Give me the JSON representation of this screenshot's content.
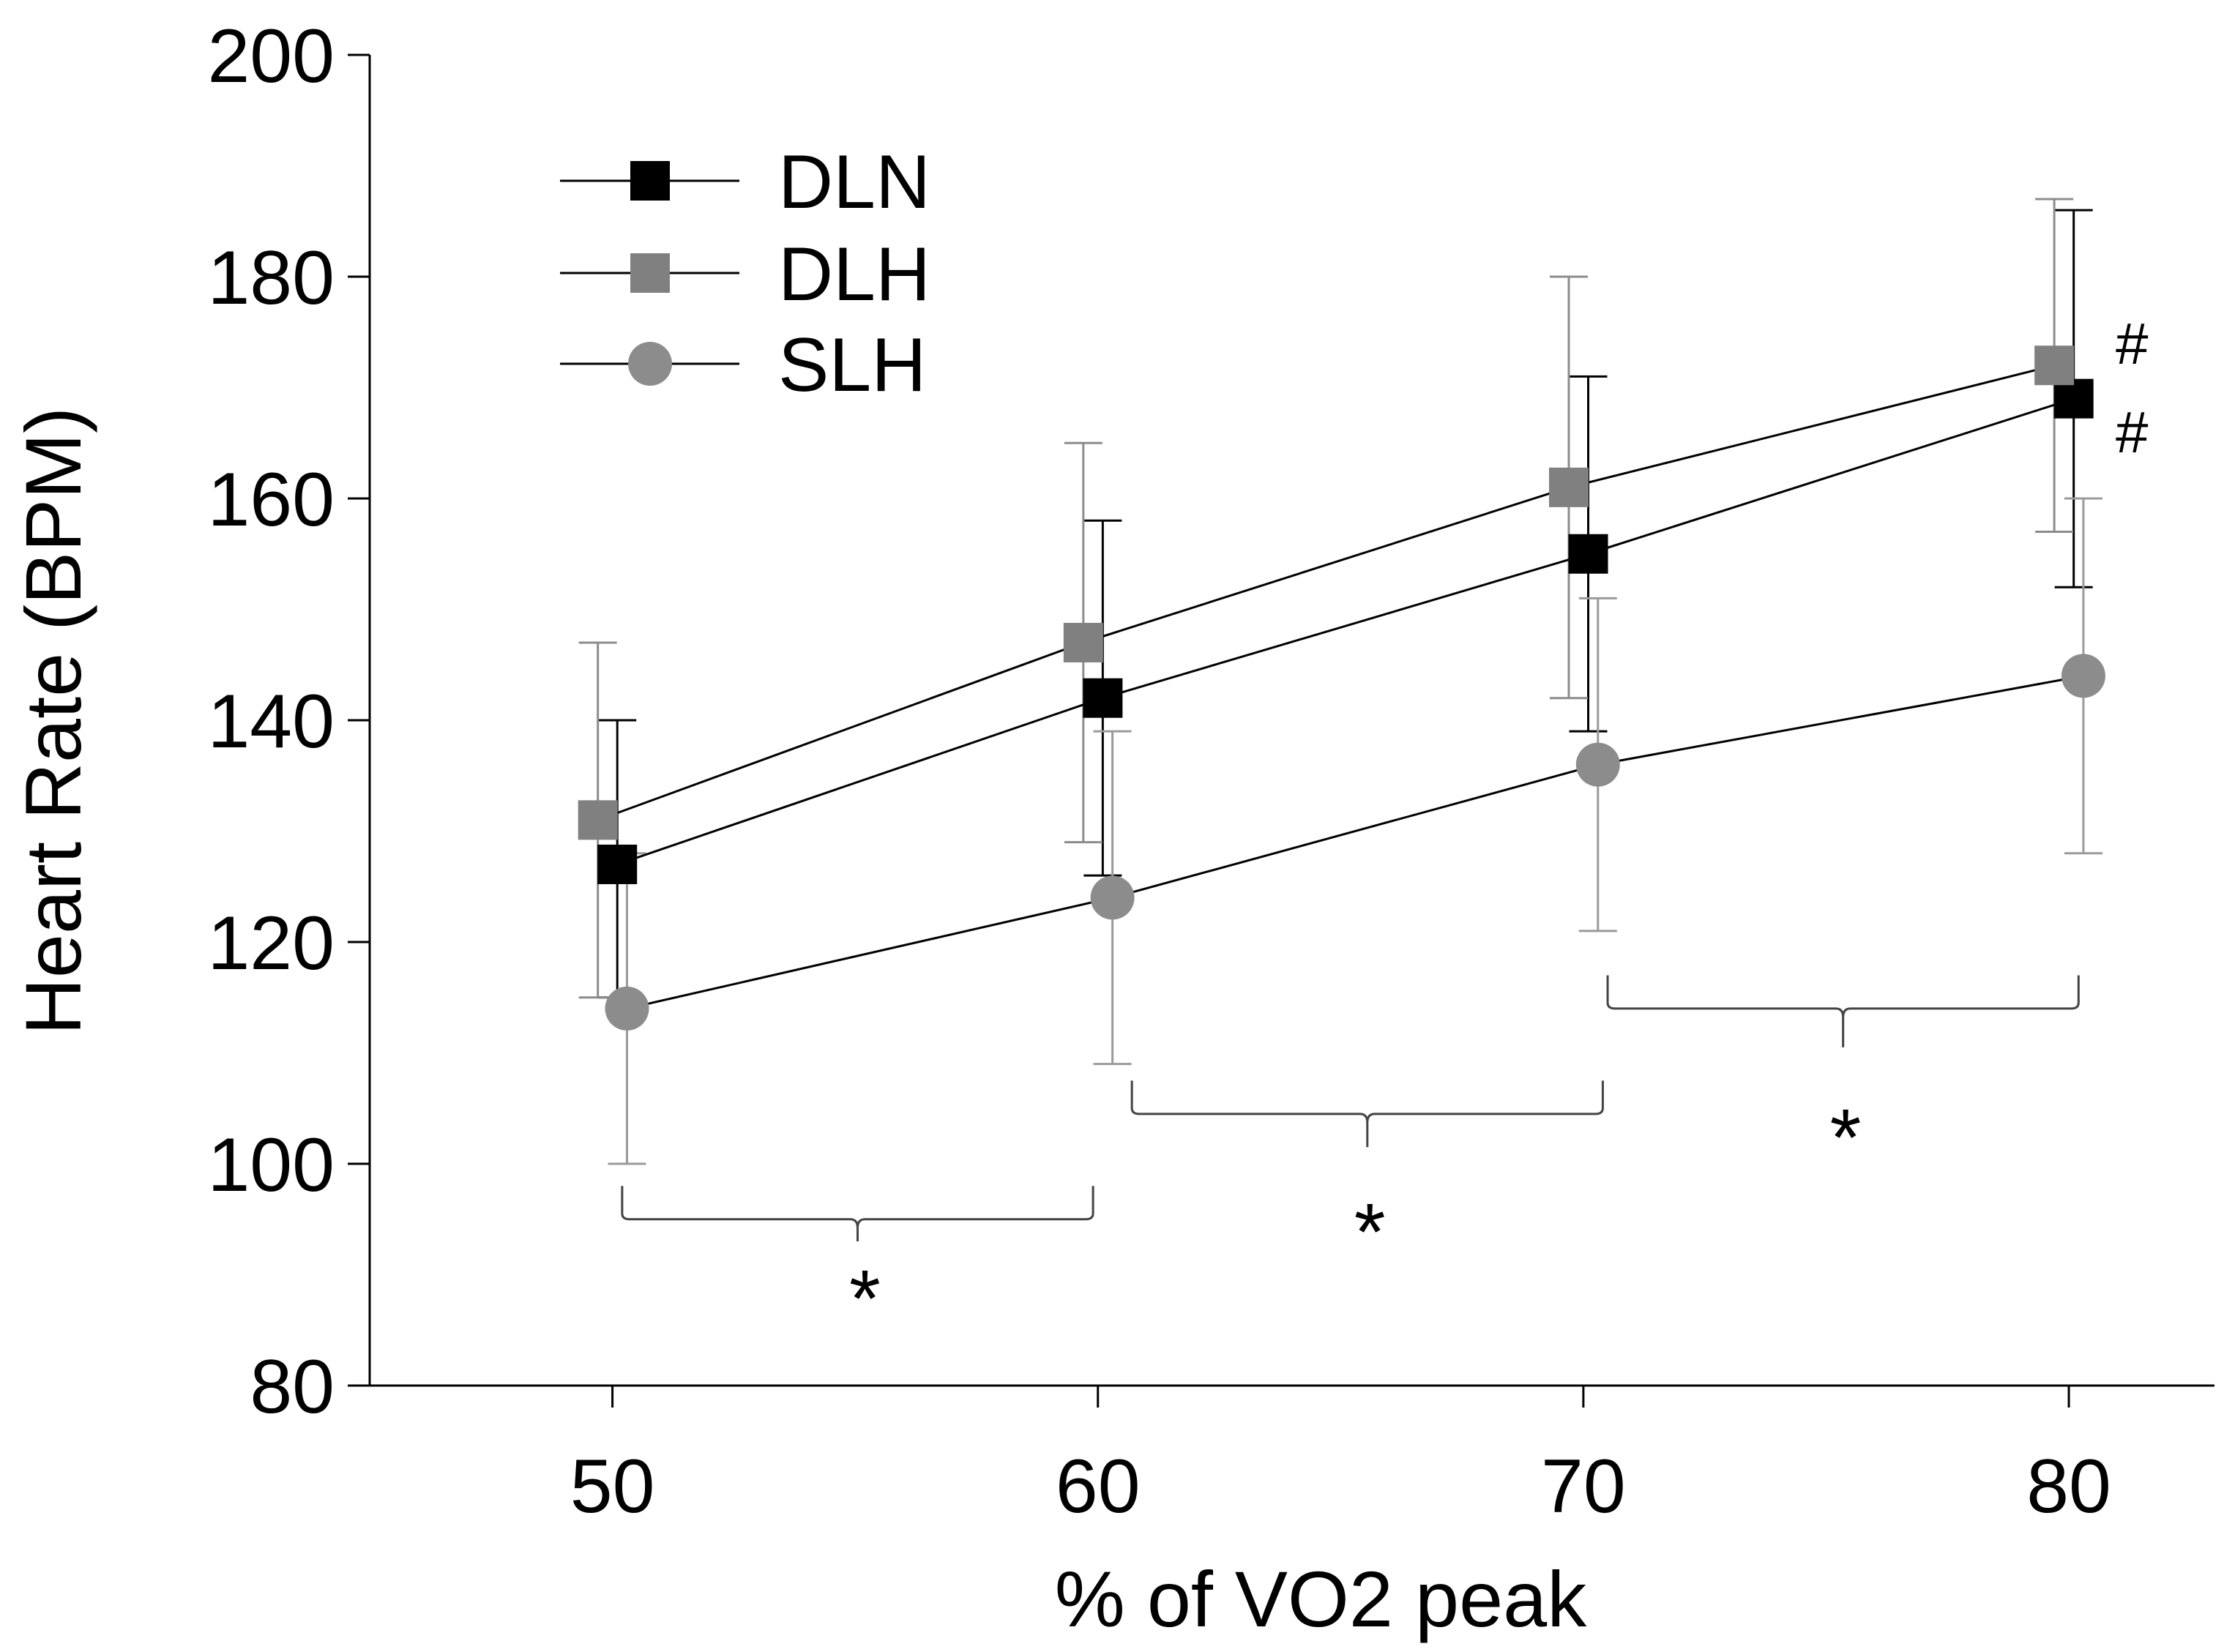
{
  "chart_data": {
    "type": "line",
    "x": [
      50,
      60,
      70,
      80
    ],
    "xlabel": "% of VO2 peak",
    "ylabel": "Heart Rate (BPM)",
    "xlim": [
      45,
      83
    ],
    "ylim": [
      80,
      200
    ],
    "xticks": [
      "50",
      "60",
      "70",
      "80"
    ],
    "yticks": [
      "80",
      "100",
      "120",
      "140",
      "160",
      "180",
      "200"
    ],
    "grid": false,
    "legend_position": "top-left",
    "series": [
      {
        "name": "DLN",
        "marker": "square",
        "color": "#000000",
        "errcolor": "#000000",
        "values": [
          127,
          142,
          155,
          169
        ],
        "err_low": [
          115,
          126,
          139,
          152
        ],
        "err_high": [
          140,
          158,
          171,
          186
        ],
        "x_offset": 0.1
      },
      {
        "name": "DLH",
        "marker": "square",
        "color": "#808080",
        "errcolor": "#8c8c8c",
        "values": [
          131,
          147,
          161,
          172
        ],
        "err_low": [
          115,
          129,
          142,
          157
        ],
        "err_high": [
          147,
          165,
          180,
          187
        ],
        "x_offset": -0.3
      },
      {
        "name": "SLH",
        "marker": "circle",
        "color": "#8c8c8c",
        "errcolor": "#9a9a9a",
        "values": [
          114,
          124,
          136,
          144
        ],
        "err_low": [
          100,
          109,
          121,
          128
        ],
        "err_high": [
          128,
          139,
          151,
          160
        ],
        "x_offset": 0.3
      }
    ],
    "annotations": [
      {
        "text": "*",
        "x1": 50.2,
        "x2": 59.9,
        "y_top": 98,
        "y_bottom": 95,
        "y_tip": 93,
        "label_x": 55.2,
        "label_y": 88
      },
      {
        "text": "*",
        "x1": 60.7,
        "x2": 70.4,
        "y_top": 107.5,
        "y_bottom": 104.5,
        "y_tip": 101.5,
        "label_x": 65.6,
        "label_y": 94
      },
      {
        "text": "*",
        "x1": 70.5,
        "x2": 80.2,
        "y_top": 117,
        "y_bottom": 114,
        "y_tip": 110.5,
        "label_x": 75.4,
        "label_y": 102.5
      },
      {
        "text": "#",
        "label_x": 81.3,
        "label_y": 174
      },
      {
        "text": "#",
        "label_x": 81.3,
        "label_y": 166
      }
    ]
  }
}
